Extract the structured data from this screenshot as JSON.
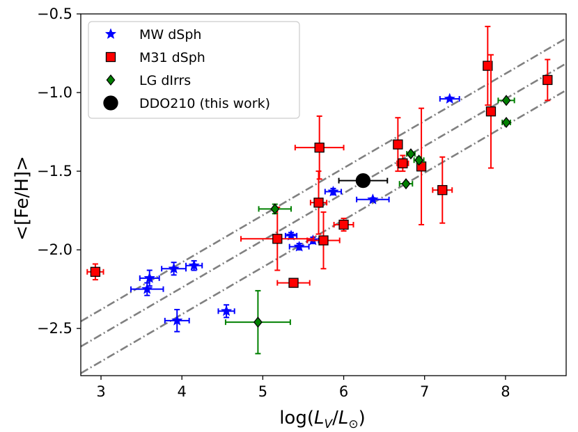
{
  "chart_data": {
    "type": "scatter",
    "xlabel_parts": {
      "prefix": "log(",
      "l1": "L",
      "sub1": "V",
      "slash": "/",
      "l2": "L",
      "sub2": "⊙",
      "suffix": ")"
    },
    "ylabel": "<[Fe/H]>",
    "xlim": [
      2.75,
      8.75
    ],
    "ylim": [
      -2.8,
      -0.5
    ],
    "xticks": [
      3,
      4,
      5,
      6,
      7,
      8
    ],
    "yticks": [
      -0.5,
      -1.0,
      -1.5,
      -2.0,
      -2.5
    ],
    "xtick_labels": [
      "3",
      "4",
      "5",
      "6",
      "7",
      "8"
    ],
    "ytick_labels": [
      "−0.5",
      "−1.0",
      "−1.5",
      "−2.0",
      "−2.5"
    ],
    "legend_position": "top-left",
    "grid": false,
    "relations": {
      "style": "dash-dot",
      "color": "#808080",
      "lines": [
        {
          "name": "upper",
          "slope": 0.3,
          "intercept": -3.28
        },
        {
          "name": "middle",
          "slope": 0.3,
          "intercept": -3.44
        },
        {
          "name": "lower",
          "slope": 0.3,
          "intercept": -3.61
        }
      ]
    },
    "series": [
      {
        "name": "MW dSph",
        "marker": "star",
        "color": "#0000ff",
        "points": [
          {
            "x": 3.57,
            "y": -2.25,
            "xerr": 0.2,
            "yerr": 0.04
          },
          {
            "x": 3.6,
            "y": -2.18,
            "xerr": 0.12,
            "yerr": 0.05
          },
          {
            "x": 3.9,
            "y": -2.12,
            "xerr": 0.15,
            "yerr": 0.04
          },
          {
            "x": 4.15,
            "y": -2.1,
            "xerr": 0.1,
            "yerr": 0.03
          },
          {
            "x": 3.94,
            "y": -2.45,
            "xerr": 0.15,
            "yerr": 0.07
          },
          {
            "x": 4.55,
            "y": -2.39,
            "xerr": 0.1,
            "yerr": 0.04
          },
          {
            "x": 5.35,
            "y": -1.91,
            "xerr": 0.07,
            "yerr": 0.02
          },
          {
            "x": 5.45,
            "y": -1.98,
            "xerr": 0.12,
            "yerr": 0.02
          },
          {
            "x": 5.62,
            "y": -1.94,
            "xerr": 0.07,
            "yerr": 0.02
          },
          {
            "x": 5.87,
            "y": -1.63,
            "xerr": 0.1,
            "yerr": 0.02
          },
          {
            "x": 6.36,
            "y": -1.68,
            "xerr": 0.2,
            "yerr": 0.01
          },
          {
            "x": 7.31,
            "y": -1.04,
            "xerr": 0.12,
            "yerr": 0.01
          }
        ]
      },
      {
        "name": "M31 dSph",
        "marker": "square",
        "color": "#ff0000",
        "points": [
          {
            "x": 2.93,
            "y": -2.14,
            "xerr": 0.1,
            "yerr": 0.05
          },
          {
            "x": 5.18,
            "y": -1.93,
            "xerr": 0.45,
            "yerr": 0.2
          },
          {
            "x": 5.38,
            "y": -2.21,
            "xerr": 0.2,
            "yerr": 0.01
          },
          {
            "x": 5.69,
            "y": -1.7,
            "xerr": 0.1,
            "yerr": 0.2
          },
          {
            "x": 5.7,
            "y": -1.35,
            "xerr": 0.3,
            "yerr": 0.2
          },
          {
            "x": 5.75,
            "y": -1.94,
            "xerr": 0.2,
            "yerr": 0.18
          },
          {
            "x": 6.0,
            "y": -1.84,
            "xerr": 0.12,
            "yerr": 0.04
          },
          {
            "x": 6.67,
            "y": -1.33,
            "xerr": 0.04,
            "yerr": 0.17
          },
          {
            "x": 6.73,
            "y": -1.45,
            "xerr": 0.07,
            "yerr": 0.05
          },
          {
            "x": 6.96,
            "y": -1.47,
            "xerr": 0.05,
            "yerr": 0.37
          },
          {
            "x": 7.22,
            "y": -1.62,
            "xerr": 0.12,
            "yerr": 0.21
          },
          {
            "x": 7.78,
            "y": -0.83,
            "xerr": 0.03,
            "yerr": 0.25
          },
          {
            "x": 7.82,
            "y": -1.12,
            "xerr": 0.03,
            "yerr": 0.36
          },
          {
            "x": 8.52,
            "y": -0.92,
            "xerr": 0.04,
            "yerr": 0.13
          }
        ]
      },
      {
        "name": "LG dIrrs",
        "marker": "diamond",
        "color": "#008000",
        "points": [
          {
            "x": 4.94,
            "y": -2.46,
            "xerr": 0.4,
            "yerr": 0.2
          },
          {
            "x": 5.15,
            "y": -1.74,
            "xerr": 0.2,
            "yerr": 0.03
          },
          {
            "x": 6.77,
            "y": -1.58,
            "xerr": 0.08,
            "yerr": 0.01
          },
          {
            "x": 6.83,
            "y": -1.39,
            "xerr": 0.05,
            "yerr": 0.01
          },
          {
            "x": 6.93,
            "y": -1.43,
            "xerr": 0.06,
            "yerr": 0.02
          },
          {
            "x": 8.01,
            "y": -1.05,
            "xerr": 0.1,
            "yerr": 0.01
          },
          {
            "x": 8.01,
            "y": -1.19,
            "xerr": 0.05,
            "yerr": 0.01
          }
        ]
      },
      {
        "name": "DDO210 (this work)",
        "marker": "circle",
        "color": "#000000",
        "points": [
          {
            "x": 6.24,
            "y": -1.56,
            "xerr": 0.3,
            "yerr": 0.03
          }
        ]
      }
    ]
  }
}
